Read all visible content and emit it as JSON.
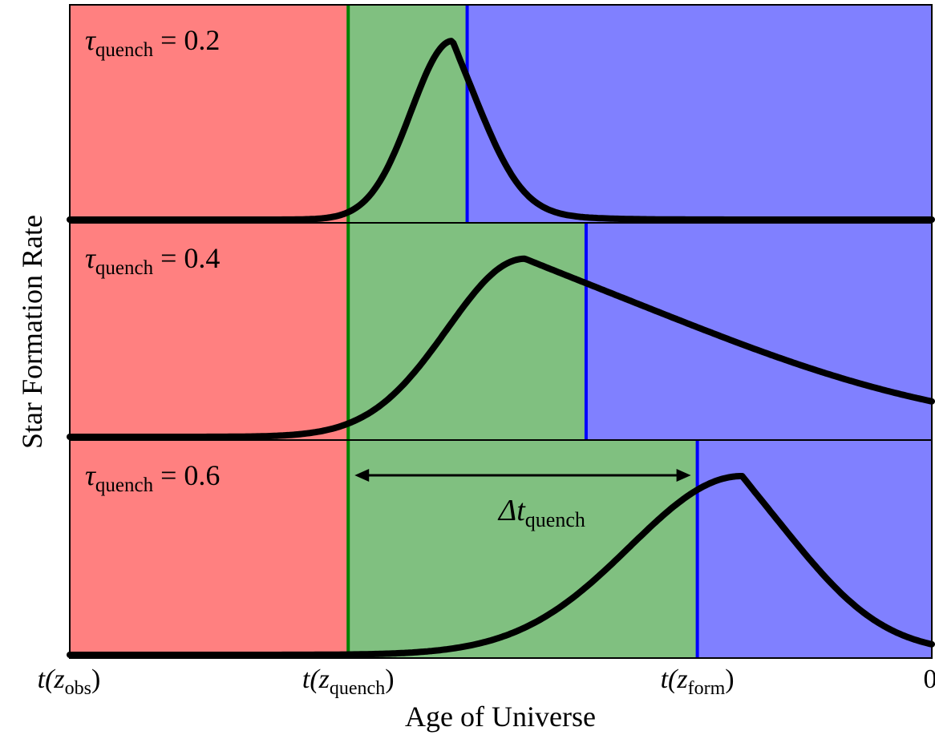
{
  "chart_data": {
    "type": "line",
    "xlabel": "Age of Universe",
    "ylabel": "Star Formation Rate",
    "x_ticks": [
      {
        "label": "t(z",
        "sub": "obs",
        "close": ")"
      },
      {
        "label": "t(z",
        "sub": "quench",
        "close": ")"
      },
      {
        "label": "t(z",
        "sub": "form",
        "close": ")"
      },
      {
        "label": "0",
        "sub": "",
        "close": ""
      }
    ],
    "x_tick_positions": [
      0,
      0.323,
      0.728,
      1.0
    ],
    "region_colors": {
      "red": "#ff8080",
      "green": "#80c080",
      "blue": "#8080ff",
      "green_line": "#008000",
      "blue_line": "#0000ff",
      "curve": "#000000"
    },
    "panels": [
      {
        "tau_symbol": "τ",
        "tau_sub": "quench",
        "tau_eq": " = 0.2",
        "quench_x": 0.323,
        "form_x": 0.461,
        "curve": {
          "peak_x": 0.444,
          "sigma_left": 0.048,
          "tau_right": 0.045,
          "peak": 0.82,
          "baseline": 0.0
        }
      },
      {
        "tau_symbol": "τ",
        "tau_sub": "quench",
        "tau_eq": " = 0.4",
        "quench_x": 0.323,
        "form_x": 0.599,
        "curve": {
          "peak_x": 0.528,
          "sigma_left": 0.09,
          "tau_right": 0.28,
          "peak": 0.82,
          "baseline": 0.0
        }
      },
      {
        "tau_symbol": "τ",
        "tau_sub": "quench",
        "tau_eq": " = 0.6",
        "quench_x": 0.323,
        "form_x": 0.728,
        "curve": {
          "peak_x": 0.78,
          "sigma_left": 0.13,
          "tau_right": 0.09,
          "peak": 0.82,
          "baseline": 0.0
        },
        "annotation": {
          "symbol": "Δt",
          "sub": "quench"
        }
      }
    ]
  }
}
